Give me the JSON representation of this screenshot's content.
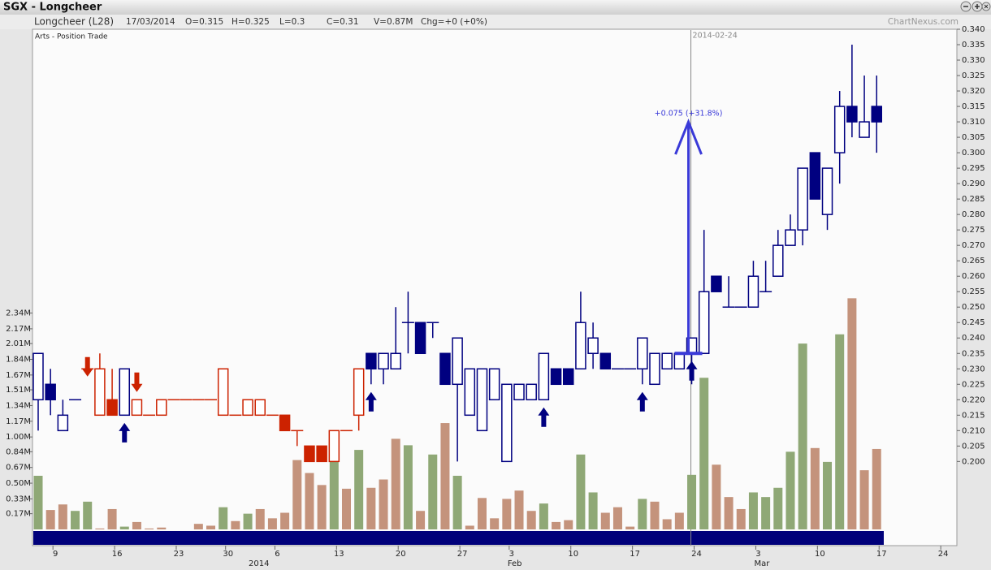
{
  "window": {
    "title": "SGX - Longcheer",
    "site": "ChartNexus.com"
  },
  "info": {
    "name": "Longcheer (L28)",
    "date": "17/03/2014",
    "open": "O=0.315",
    "high": "H=0.325",
    "low": "L=0.3",
    "close": "C=0.31",
    "volume": "V=0.87M",
    "change": "Chg=+0 (+0%)"
  },
  "chart_data": {
    "type": "candlestick",
    "subtitle": "Arts - Position Trade",
    "categories": [
      null,
      "9",
      null,
      null,
      null,
      null,
      "16",
      null,
      null,
      null,
      null,
      "23",
      null,
      null,
      null,
      "30",
      null,
      null,
      null,
      "6",
      null,
      null,
      null,
      null,
      "13",
      null,
      null,
      null,
      null,
      "20",
      null,
      null,
      null,
      null,
      "27",
      null,
      null,
      null,
      "3",
      null,
      null,
      null,
      null,
      "10",
      null,
      null,
      null,
      null,
      "17",
      null,
      null,
      null,
      null,
      "24",
      null,
      null,
      null,
      null,
      "3",
      null,
      null,
      null,
      null,
      "10",
      null,
      null,
      null,
      null,
      "17"
    ],
    "months": [
      null,
      null,
      null,
      null,
      null,
      null,
      null,
      null,
      null,
      null,
      null,
      null,
      null,
      null,
      null,
      null,
      null,
      "2014",
      null,
      null,
      null,
      null,
      null,
      null,
      null,
      null,
      null,
      null,
      null,
      null,
      null,
      null,
      null,
      null,
      null,
      null,
      null,
      null,
      "Feb",
      null,
      null,
      null,
      null,
      null,
      null,
      null,
      null,
      null,
      null,
      null,
      null,
      null,
      null,
      null,
      null,
      null,
      null,
      null,
      "Mar",
      null,
      null,
      null,
      null,
      null,
      null,
      null,
      null,
      null,
      null
    ],
    "future_categories": [
      null,
      null,
      null,
      null,
      "24"
    ],
    "open": [
      0.22,
      0.225,
      0.21,
      0.22,
      0.23,
      0.215,
      0.22,
      0.215,
      0.215,
      0.215,
      0.215,
      0.22,
      0.22,
      0.22,
      0.22,
      0.215,
      0.215,
      0.215,
      0.215,
      0.215,
      0.215,
      0.21,
      0.205,
      0.205,
      0.2,
      0.21,
      0.215,
      0.235,
      0.23,
      0.23,
      0.245,
      0.245,
      0.245,
      0.235,
      0.225,
      0.215,
      0.21,
      0.22,
      0.2,
      0.22,
      0.22,
      0.22,
      0.23,
      0.23,
      0.23,
      0.235,
      0.235,
      0.23,
      0.23,
      0.23,
      0.225,
      0.23,
      0.23,
      0.235,
      0.235,
      0.26,
      0.25,
      0.25,
      0.25,
      0.255,
      0.26,
      0.27,
      0.275,
      0.3,
      0.28,
      0.3,
      0.315,
      0.305,
      0.315
    ],
    "high": [
      0.235,
      0.23,
      0.22,
      0.22,
      0.23,
      0.235,
      0.23,
      0.23,
      0.22,
      0.215,
      0.22,
      0.22,
      0.22,
      0.22,
      0.22,
      0.23,
      0.215,
      0.22,
      0.22,
      0.215,
      0.215,
      0.21,
      0.205,
      0.205,
      0.21,
      0.21,
      0.23,
      0.235,
      0.235,
      0.25,
      0.255,
      0.245,
      0.245,
      0.235,
      0.24,
      0.23,
      0.23,
      0.23,
      0.225,
      0.225,
      0.225,
      0.235,
      0.23,
      0.23,
      0.255,
      0.245,
      0.235,
      0.23,
      0.23,
      0.24,
      0.235,
      0.235,
      0.235,
      0.24,
      0.275,
      0.26,
      0.26,
      0.25,
      0.265,
      0.265,
      0.275,
      0.28,
      0.295,
      0.3,
      0.295,
      0.32,
      0.335,
      0.325,
      0.325
    ],
    "low": [
      0.21,
      0.215,
      0.21,
      0.22,
      0.23,
      0.215,
      0.215,
      0.215,
      0.215,
      0.215,
      0.215,
      0.22,
      0.22,
      0.22,
      0.22,
      0.215,
      0.215,
      0.215,
      0.215,
      0.215,
      0.21,
      0.205,
      0.2,
      0.2,
      0.2,
      0.21,
      0.21,
      0.225,
      0.225,
      0.23,
      0.235,
      0.235,
      0.24,
      0.225,
      0.2,
      0.215,
      0.21,
      0.22,
      0.2,
      0.22,
      0.22,
      0.22,
      0.225,
      0.225,
      0.23,
      0.23,
      0.23,
      0.23,
      0.23,
      0.225,
      0.225,
      0.23,
      0.23,
      0.225,
      0.235,
      0.255,
      0.25,
      0.25,
      0.25,
      0.255,
      0.26,
      0.27,
      0.27,
      0.285,
      0.275,
      0.29,
      0.305,
      0.305,
      0.3
    ],
    "close": [
      0.235,
      0.22,
      0.215,
      0.22,
      0.23,
      0.23,
      0.215,
      0.23,
      0.22,
      0.215,
      0.22,
      0.22,
      0.22,
      0.22,
      0.22,
      0.23,
      0.215,
      0.22,
      0.22,
      0.215,
      0.21,
      0.21,
      0.2,
      0.2,
      0.21,
      0.21,
      0.23,
      0.23,
      0.235,
      0.235,
      0.245,
      0.235,
      0.245,
      0.225,
      0.24,
      0.23,
      0.23,
      0.23,
      0.225,
      0.225,
      0.225,
      0.235,
      0.225,
      0.225,
      0.245,
      0.24,
      0.23,
      0.23,
      0.23,
      0.24,
      0.235,
      0.235,
      0.235,
      0.24,
      0.255,
      0.255,
      0.25,
      0.25,
      0.26,
      0.255,
      0.27,
      0.275,
      0.295,
      0.285,
      0.295,
      0.315,
      0.31,
      0.31,
      0.31
    ],
    "colors": [
      "#000080",
      "#000080",
      "#000080",
      "#000080",
      "#cc2200",
      "#cc2200",
      "#cc2200",
      "#000080",
      "#cc2200",
      "#cc2200",
      "#cc2200",
      "#cc2200",
      "#cc2200",
      "#cc2200",
      "#cc2200",
      "#cc2200",
      "#cc2200",
      "#cc2200",
      "#cc2200",
      "#cc2200",
      "#cc2200",
      "#cc2200",
      "#cc2200",
      "#cc2200",
      "#cc2200",
      "#cc2200",
      "#cc2200",
      "#000080",
      "#000080",
      "#000080",
      "#000080",
      "#000080",
      "#000080",
      "#000080",
      "#000080",
      "#000080",
      "#000080",
      "#000080",
      "#000080",
      "#000080",
      "#000080",
      "#000080",
      "#000080",
      "#000080",
      "#000080",
      "#000080",
      "#000080",
      "#000080",
      "#000080",
      "#000080",
      "#000080",
      "#000080",
      "#000080",
      "#000080",
      "#000080",
      "#000080",
      "#000080",
      "#000080",
      "#000080",
      "#000080",
      "#000080",
      "#000080",
      "#000080",
      "#000080",
      "#000080",
      "#000080",
      "#000080",
      "#000080",
      "#000080"
    ],
    "up_fill": "#ffffff",
    "ylim": [
      0.178,
      0.34
    ],
    "yticks": [
      {
        "value": 0.2,
        "label": "0.200"
      },
      {
        "value": 0.205,
        "label": "0.205"
      },
      {
        "value": 0.21,
        "label": "0.210"
      },
      {
        "value": 0.215,
        "label": "0.215"
      },
      {
        "value": 0.22,
        "label": "0.220"
      },
      {
        "value": 0.225,
        "label": "0.225"
      },
      {
        "value": 0.23,
        "label": "0.230"
      },
      {
        "value": 0.235,
        "label": "0.235"
      },
      {
        "value": 0.24,
        "label": "0.240"
      },
      {
        "value": 0.245,
        "label": "0.245"
      },
      {
        "value": 0.25,
        "label": "0.250"
      },
      {
        "value": 0.255,
        "label": "0.255"
      },
      {
        "value": 0.26,
        "label": "0.260"
      },
      {
        "value": 0.265,
        "label": "0.265"
      },
      {
        "value": 0.27,
        "label": "0.270"
      },
      {
        "value": 0.275,
        "label": "0.275"
      },
      {
        "value": 0.28,
        "label": "0.280"
      },
      {
        "value": 0.285,
        "label": "0.285"
      },
      {
        "value": 0.29,
        "label": "0.290"
      },
      {
        "value": 0.295,
        "label": "0.295"
      },
      {
        "value": 0.3,
        "label": "0.300"
      },
      {
        "value": 0.305,
        "label": "0.305"
      },
      {
        "value": 0.31,
        "label": "0.310"
      },
      {
        "value": 0.315,
        "label": "0.315"
      },
      {
        "value": 0.32,
        "label": "0.320"
      },
      {
        "value": 0.325,
        "label": "0.325"
      },
      {
        "value": 0.33,
        "label": "0.330"
      },
      {
        "value": 0.335,
        "label": "0.335"
      },
      {
        "value": 0.34,
        "label": "0.340"
      }
    ],
    "volume": {
      "axis": "y2",
      "values": [
        0.58,
        0.21,
        0.27,
        0.2,
        0.3,
        0.01,
        0.22,
        0.03,
        0.08,
        0.01,
        0.02,
        0,
        0,
        0.06,
        0.04,
        0.24,
        0.09,
        0.17,
        0.22,
        0.12,
        0.18,
        0.75,
        0.61,
        0.48,
        0.75,
        0.44,
        0.86,
        0.45,
        0.54,
        0.98,
        0.91,
        0.2,
        0.81,
        1.15,
        0.58,
        0.04,
        0.34,
        0.12,
        0.33,
        0.42,
        0.2,
        0.28,
        0.08,
        0.1,
        0.81,
        0.4,
        0.18,
        0.24,
        0.03,
        0.33,
        0.3,
        0.11,
        0.18,
        0.59,
        1.64,
        0.7,
        0.35,
        0.22,
        0.4,
        0.35,
        0.45,
        0.84,
        2.01,
        0.88,
        0.73,
        2.11,
        2.5,
        0.64,
        0.87
      ],
      "colors": [
        "#8fa876",
        "#c4937c",
        "#c4937c",
        "#8fa876",
        "#8fa876",
        "#c4937c",
        "#c4937c",
        "#8fa876",
        "#c4937c",
        "#c4937c",
        "#c4937c",
        "#c4937c",
        "#c4937c",
        "#c4937c",
        "#c4937c",
        "#8fa876",
        "#c4937c",
        "#8fa876",
        "#c4937c",
        "#c4937c",
        "#c4937c",
        "#c4937c",
        "#c4937c",
        "#c4937c",
        "#8fa876",
        "#c4937c",
        "#8fa876",
        "#c4937c",
        "#c4937c",
        "#c4937c",
        "#8fa876",
        "#c4937c",
        "#8fa876",
        "#c4937c",
        "#8fa876",
        "#c4937c",
        "#c4937c",
        "#c4937c",
        "#c4937c",
        "#c4937c",
        "#c4937c",
        "#8fa876",
        "#c4937c",
        "#c4937c",
        "#8fa876",
        "#8fa876",
        "#c4937c",
        "#c4937c",
        "#c4937c",
        "#8fa876",
        "#c4937c",
        "#c4937c",
        "#c4937c",
        "#8fa876",
        "#8fa876",
        "#c4937c",
        "#c4937c",
        "#c4937c",
        "#8fa876",
        "#8fa876",
        "#8fa876",
        "#8fa876",
        "#8fa876",
        "#c4937c",
        "#8fa876",
        "#8fa876",
        "#c4937c",
        "#c4937c",
        "#c4937c"
      ]
    },
    "y2lim": [
      0,
      5.41
    ],
    "y2ticks": [
      {
        "value": 0.17,
        "label": "0.17M"
      },
      {
        "value": 0.33,
        "label": "0.33M"
      },
      {
        "value": 0.5,
        "label": "0.50M"
      },
      {
        "value": 0.67,
        "label": "0.67M"
      },
      {
        "value": 0.84,
        "label": "0.84M"
      },
      {
        "value": 1.0,
        "label": "1.00M"
      },
      {
        "value": 1.17,
        "label": "1.17M"
      },
      {
        "value": 1.34,
        "label": "1.34M"
      },
      {
        "value": 1.51,
        "label": "1.51M"
      },
      {
        "value": 1.67,
        "label": "1.67M"
      },
      {
        "value": 1.84,
        "label": "1.84M"
      },
      {
        "value": 2.01,
        "label": "2.01M"
      },
      {
        "value": 2.17,
        "label": "2.17M"
      },
      {
        "value": 2.34,
        "label": "2.34M"
      }
    ],
    "marker_line": {
      "index": 53,
      "label": "2014-02-24"
    },
    "arrow": {
      "index": 53,
      "from": 0.235,
      "to": 0.31,
      "label": "+0.075 (+31.8%)",
      "color": "#3a3ad8"
    },
    "buy_signals": [
      {
        "index": 7,
        "value": 0.2125
      },
      {
        "index": 27,
        "value": 0.2225
      },
      {
        "index": 41,
        "value": 0.2175
      },
      {
        "index": 49,
        "value": 0.2225
      },
      {
        "index": 53,
        "value": 0.2325
      }
    ],
    "sell_signals": [
      {
        "index": 4,
        "value": 0.2275
      },
      {
        "index": 8,
        "value": 0.2225
      }
    ],
    "buy_color": "#000080",
    "sell_color": "#cc2200"
  }
}
